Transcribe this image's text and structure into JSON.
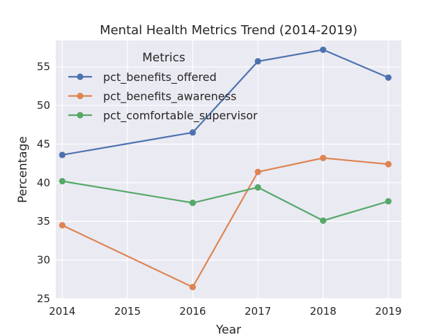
{
  "chart_data": {
    "type": "line",
    "title": "Mental Health Metrics Trend (2014-2019)",
    "xlabel": "Year",
    "ylabel": "Percentage",
    "x": [
      2014,
      2016,
      2017,
      2018,
      2019
    ],
    "x_ticks": [
      "2014",
      "2015",
      "2016",
      "2017",
      "2018",
      "2019"
    ],
    "y_ticks": [
      "25",
      "30",
      "35",
      "40",
      "45",
      "50",
      "55"
    ],
    "ylim": [
      25,
      58.4
    ],
    "grid": true,
    "legend": {
      "title": "Metrics",
      "placement": "upper-left"
    },
    "series": [
      {
        "name": "pct_benefits_offered",
        "color": "#4c72b0",
        "values": [
          43.6,
          46.5,
          55.7,
          57.2,
          53.6
        ]
      },
      {
        "name": "pct_benefits_awareness",
        "color": "#dd8452",
        "values": [
          34.5,
          26.5,
          41.4,
          43.2,
          42.4
        ]
      },
      {
        "name": "pct_comfortable_supervisor",
        "color": "#55a868",
        "values": [
          40.2,
          37.4,
          39.4,
          35.1,
          37.6
        ]
      }
    ]
  }
}
